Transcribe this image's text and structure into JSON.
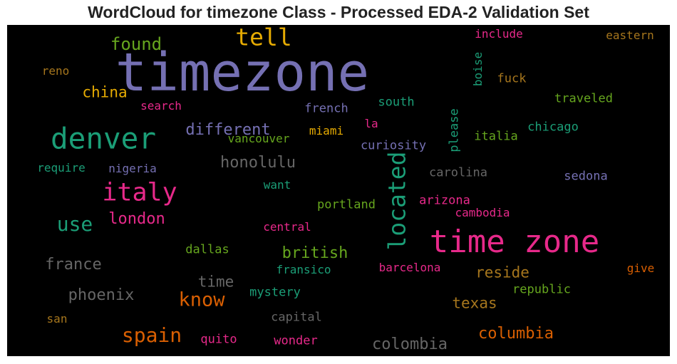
{
  "title": "WordCloud for timezone Class - Processed EDA-2 Validation Set",
  "chart_data": {
    "type": "wordcloud",
    "background": "#000000",
    "colormap": "Dark2",
    "words": [
      {
        "text": "timezone",
        "weight": 1.0,
        "color": "#7570b3",
        "orientation": "horizontal"
      },
      {
        "text": "time zone",
        "weight": 0.61,
        "color": "#e7298a",
        "orientation": "horizontal"
      },
      {
        "text": "denver",
        "weight": 0.57,
        "color": "#1b9e77",
        "orientation": "horizontal"
      },
      {
        "text": "italy",
        "weight": 0.5,
        "color": "#e7298a",
        "orientation": "horizontal"
      },
      {
        "text": "tell",
        "weight": 0.49,
        "color": "#e6ab02",
        "orientation": "horizontal"
      },
      {
        "text": "located",
        "weight": 0.47,
        "color": "#1b9e77",
        "orientation": "vertical"
      },
      {
        "text": "use",
        "weight": 0.42,
        "color": "#1b9e77",
        "orientation": "horizontal"
      },
      {
        "text": "spain",
        "weight": 0.42,
        "color": "#d95f02",
        "orientation": "horizontal"
      },
      {
        "text": "know",
        "weight": 0.4,
        "color": "#d95f02",
        "orientation": "horizontal"
      },
      {
        "text": "found",
        "weight": 0.37,
        "color": "#66a61e",
        "orientation": "horizontal"
      },
      {
        "text": "france",
        "weight": 0.35,
        "color": "#666666",
        "orientation": "horizontal"
      },
      {
        "text": "phoenix",
        "weight": 0.35,
        "color": "#666666",
        "orientation": "horizontal"
      },
      {
        "text": "london",
        "weight": 0.34,
        "color": "#e7298a",
        "orientation": "horizontal"
      },
      {
        "text": "different",
        "weight": 0.34,
        "color": "#7570b3",
        "orientation": "horizontal"
      },
      {
        "text": "honolulu",
        "weight": 0.34,
        "color": "#666666",
        "orientation": "horizontal"
      },
      {
        "text": "british",
        "weight": 0.34,
        "color": "#66a61e",
        "orientation": "horizontal"
      },
      {
        "text": "colombia",
        "weight": 0.34,
        "color": "#666666",
        "orientation": "horizontal"
      },
      {
        "text": "columbia",
        "weight": 0.34,
        "color": "#d95f02",
        "orientation": "horizontal"
      },
      {
        "text": "reside",
        "weight": 0.33,
        "color": "#a6761d",
        "orientation": "horizontal"
      },
      {
        "text": "china",
        "weight": 0.33,
        "color": "#e6ab02",
        "orientation": "horizontal"
      },
      {
        "text": "time",
        "weight": 0.32,
        "color": "#666666",
        "orientation": "horizontal"
      },
      {
        "text": "texas",
        "weight": 0.32,
        "color": "#a6761d",
        "orientation": "horizontal"
      },
      {
        "text": "please",
        "weight": 0.25,
        "color": "#1b9e77",
        "orientation": "vertical"
      },
      {
        "text": "boise",
        "weight": 0.22,
        "color": "#1b9e77",
        "orientation": "vertical"
      },
      {
        "text": "curiosity",
        "weight": 0.25,
        "color": "#7570b3",
        "orientation": "horizontal"
      },
      {
        "text": "traveled",
        "weight": 0.25,
        "color": "#66a61e",
        "orientation": "horizontal"
      },
      {
        "text": "chicago",
        "weight": 0.25,
        "color": "#1b9e77",
        "orientation": "horizontal"
      },
      {
        "text": "italia",
        "weight": 0.25,
        "color": "#66a61e",
        "orientation": "horizontal"
      },
      {
        "text": "south",
        "weight": 0.24,
        "color": "#1b9e77",
        "orientation": "horizontal"
      },
      {
        "text": "french",
        "weight": 0.24,
        "color": "#7570b3",
        "orientation": "horizontal"
      },
      {
        "text": "carolina",
        "weight": 0.24,
        "color": "#666666",
        "orientation": "horizontal"
      },
      {
        "text": "sedona",
        "weight": 0.24,
        "color": "#7570b3",
        "orientation": "horizontal"
      },
      {
        "text": "fuck",
        "weight": 0.24,
        "color": "#a6761d",
        "orientation": "horizontal"
      },
      {
        "text": "include",
        "weight": 0.23,
        "color": "#e7298a",
        "orientation": "horizontal"
      },
      {
        "text": "eastern",
        "weight": 0.23,
        "color": "#a6761d",
        "orientation": "horizontal"
      },
      {
        "text": "miami",
        "weight": 0.23,
        "color": "#e6ab02",
        "orientation": "horizontal"
      },
      {
        "text": "la",
        "weight": 0.23,
        "color": "#e7298a",
        "orientation": "horizontal"
      },
      {
        "text": "vancouver",
        "weight": 0.23,
        "color": "#66a61e",
        "orientation": "horizontal"
      },
      {
        "text": "nigeria",
        "weight": 0.23,
        "color": "#7570b3",
        "orientation": "horizontal"
      },
      {
        "text": "require",
        "weight": 0.23,
        "color": "#1b9e77",
        "orientation": "horizontal"
      },
      {
        "text": "reno",
        "weight": 0.23,
        "color": "#a6761d",
        "orientation": "horizontal"
      },
      {
        "text": "search",
        "weight": 0.23,
        "color": "#e7298a",
        "orientation": "horizontal"
      },
      {
        "text": "want",
        "weight": 0.23,
        "color": "#1b9e77",
        "orientation": "horizontal"
      },
      {
        "text": "portland",
        "weight": 0.24,
        "color": "#66a61e",
        "orientation": "horizontal"
      },
      {
        "text": "arizona",
        "weight": 0.24,
        "color": "#e7298a",
        "orientation": "horizontal"
      },
      {
        "text": "cambodia",
        "weight": 0.23,
        "color": "#e7298a",
        "orientation": "horizontal"
      },
      {
        "text": "central",
        "weight": 0.23,
        "color": "#e7298a",
        "orientation": "horizontal"
      },
      {
        "text": "dallas",
        "weight": 0.24,
        "color": "#66a61e",
        "orientation": "horizontal"
      },
      {
        "text": "fransico",
        "weight": 0.23,
        "color": "#1b9e77",
        "orientation": "horizontal"
      },
      {
        "text": "barcelona",
        "weight": 0.23,
        "color": "#e7298a",
        "orientation": "horizontal"
      },
      {
        "text": "give",
        "weight": 0.23,
        "color": "#d95f02",
        "orientation": "horizontal"
      },
      {
        "text": "republic",
        "weight": 0.24,
        "color": "#66a61e",
        "orientation": "horizontal"
      },
      {
        "text": "mystery",
        "weight": 0.24,
        "color": "#1b9e77",
        "orientation": "horizontal"
      },
      {
        "text": "capital",
        "weight": 0.24,
        "color": "#666666",
        "orientation": "horizontal"
      },
      {
        "text": "san",
        "weight": 0.23,
        "color": "#a6761d",
        "orientation": "horizontal"
      },
      {
        "text": "quito",
        "weight": 0.23,
        "color": "#e7298a",
        "orientation": "horizontal"
      },
      {
        "text": "wonder",
        "weight": 0.23,
        "color": "#e7298a",
        "orientation": "horizontal"
      }
    ]
  }
}
